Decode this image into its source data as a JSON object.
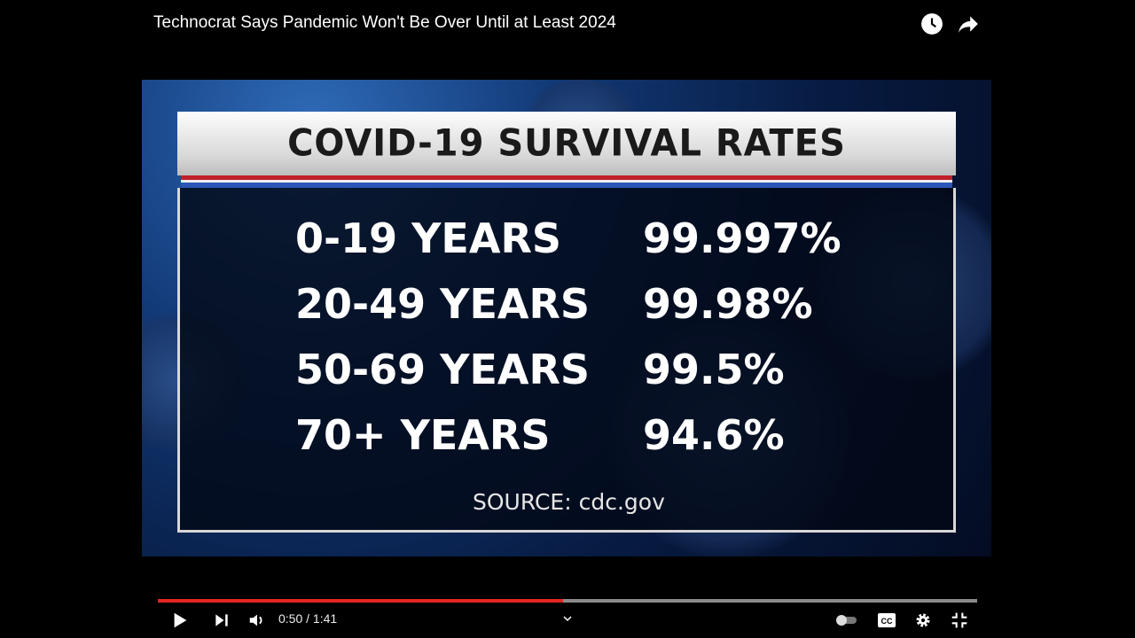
{
  "header": {
    "title": "Technocrat Says Pandemic Won't Be Over Until at Least 2024"
  },
  "video": {
    "board_title": "COVID-19 SURVIVAL RATES",
    "rows": [
      {
        "age": "0-19 YEARS",
        "rate": "99.997%"
      },
      {
        "age": "20-49 YEARS",
        "rate": "99.98%"
      },
      {
        "age": "50-69 YEARS",
        "rate": "99.5%"
      },
      {
        "age": "70+ YEARS",
        "rate": "94.6%"
      }
    ],
    "source": "SOURCE: cdc.gov"
  },
  "player": {
    "current_time": "0:50",
    "duration": "1:41",
    "time_display": "0:50 / 1:41",
    "progress": 0.495,
    "accent": "#e52521"
  }
}
